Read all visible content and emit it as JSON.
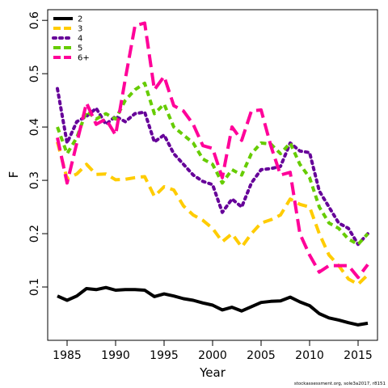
{
  "chart_data": {
    "type": "line",
    "xlabel": "Year",
    "ylabel": "F",
    "xlim": [
      1983,
      2017
    ],
    "ylim": [
      0,
      0.62
    ],
    "xticks": [
      1985,
      1990,
      1995,
      2000,
      2005,
      2010,
      2015
    ],
    "yticks": [
      0.1,
      0.2,
      0.3,
      0.4,
      0.5,
      0.6
    ],
    "grid": false,
    "legend_position": "top-left",
    "x": [
      1984,
      1985,
      1986,
      1987,
      1988,
      1989,
      1990,
      1991,
      1992,
      1993,
      1994,
      1995,
      1996,
      1997,
      1998,
      1999,
      2000,
      2001,
      2002,
      2003,
      2004,
      2005,
      2006,
      2007,
      2008,
      2009,
      2010,
      2011,
      2012,
      2013,
      2014,
      2015,
      2016
    ],
    "series": [
      {
        "name": "2",
        "color": "#000000",
        "style": "solid",
        "values": [
          0.083,
          0.075,
          0.083,
          0.097,
          0.095,
          0.099,
          0.094,
          0.095,
          0.095,
          0.094,
          0.082,
          0.087,
          0.083,
          0.078,
          0.075,
          0.07,
          0.066,
          0.057,
          0.062,
          0.055,
          0.063,
          0.071,
          0.073,
          0.074,
          0.081,
          0.072,
          0.065,
          0.05,
          0.042,
          0.038,
          0.033,
          0.029,
          0.032
        ]
      },
      {
        "name": "3",
        "color": "#FFCC00",
        "style": "dashed",
        "values": [
          0.372,
          0.303,
          0.312,
          0.33,
          0.311,
          0.312,
          0.301,
          0.302,
          0.305,
          0.307,
          0.27,
          0.288,
          0.282,
          0.252,
          0.235,
          0.225,
          0.21,
          0.185,
          0.2,
          0.175,
          0.2,
          0.22,
          0.226,
          0.235,
          0.265,
          0.255,
          0.25,
          0.2,
          0.16,
          0.14,
          0.115,
          0.105,
          0.123
        ]
      },
      {
        "name": "4",
        "color": "#660099",
        "style": "dotted",
        "values": [
          0.472,
          0.37,
          0.41,
          0.42,
          0.435,
          0.405,
          0.42,
          0.41,
          0.425,
          0.428,
          0.372,
          0.385,
          0.35,
          0.33,
          0.31,
          0.298,
          0.292,
          0.24,
          0.265,
          0.25,
          0.295,
          0.32,
          0.322,
          0.326,
          0.37,
          0.355,
          0.352,
          0.28,
          0.25,
          0.22,
          0.21,
          0.18,
          0.2
        ]
      },
      {
        "name": "5",
        "color": "#66CC00",
        "style": "dashed-short",
        "values": [
          0.4,
          0.35,
          0.38,
          0.43,
          0.415,
          0.425,
          0.415,
          0.45,
          0.47,
          0.482,
          0.425,
          0.443,
          0.4,
          0.385,
          0.37,
          0.34,
          0.33,
          0.295,
          0.32,
          0.31,
          0.35,
          0.37,
          0.368,
          0.35,
          0.37,
          0.33,
          0.305,
          0.25,
          0.22,
          0.21,
          0.19,
          0.18,
          0.2
        ]
      },
      {
        "name": "6+",
        "color": "#FF0099",
        "style": "dashed-long",
        "values": [
          0.38,
          0.295,
          0.37,
          0.445,
          0.405,
          0.415,
          0.385,
          0.49,
          0.59,
          0.595,
          0.47,
          0.495,
          0.44,
          0.43,
          0.405,
          0.365,
          0.36,
          0.305,
          0.4,
          0.375,
          0.43,
          0.432,
          0.365,
          0.31,
          0.315,
          0.2,
          0.16,
          0.128,
          0.14,
          0.14,
          0.14,
          0.118,
          0.142
        ]
      }
    ]
  },
  "footer": "stockassessment.org, sole3a2017, r8151"
}
